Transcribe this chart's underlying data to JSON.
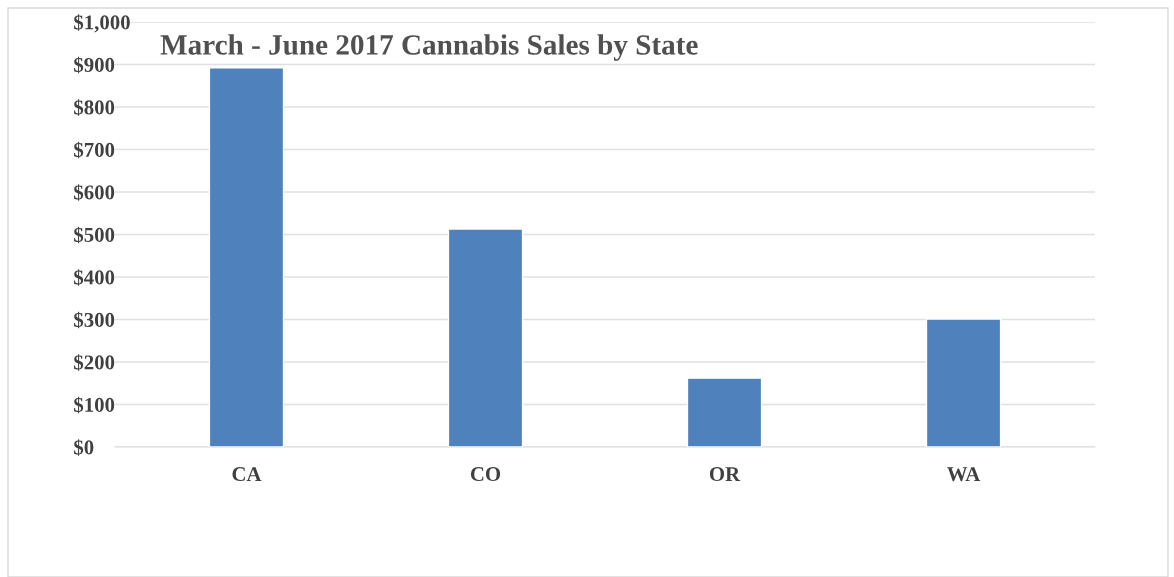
{
  "chart_data": {
    "type": "bar",
    "title": "March - June 2017 Cannabis Sales by State",
    "categories": [
      "CA",
      "CO",
      "OR",
      "WA"
    ],
    "values": [
      892,
      513,
      162,
      301
    ],
    "color": "#4f81bd",
    "ylim": [
      0,
      1000
    ],
    "yticks": [
      {
        "value": 0,
        "label": "$0"
      },
      {
        "value": 100,
        "label": "$100"
      },
      {
        "value": 200,
        "label": "$200"
      },
      {
        "value": 300,
        "label": "$300"
      },
      {
        "value": 400,
        "label": "$400"
      },
      {
        "value": 500,
        "label": "$500"
      },
      {
        "value": 600,
        "label": "$600"
      },
      {
        "value": 700,
        "label": "$700"
      },
      {
        "value": 800,
        "label": "$800"
      },
      {
        "value": 900,
        "label": "$900"
      },
      {
        "value": 1000,
        "label": "$1,000"
      }
    ],
    "grid": "y"
  }
}
